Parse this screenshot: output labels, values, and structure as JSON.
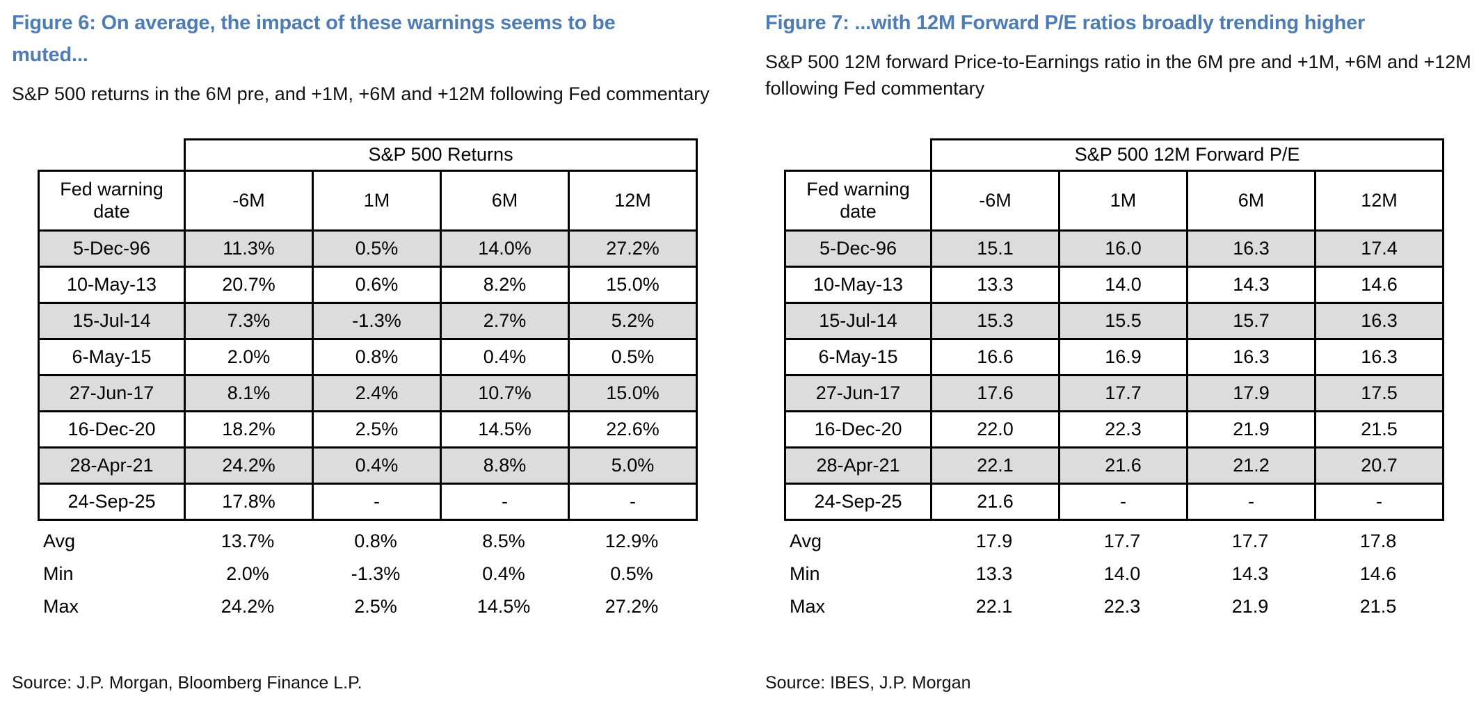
{
  "colors": {
    "title_blue": "#4e7cb4",
    "row_stripe": "#dcdcdc",
    "border": "#000000"
  },
  "figures": [
    {
      "id": "figure-6",
      "title": "Figure 6: On average, the impact of these warnings seems to be muted...",
      "subtitle": "S&P 500 returns in the 6M pre, and +1M, +6M and +12M following Fed commentary",
      "table": {
        "span_header": "S&P 500 Returns",
        "row_header": "Fed warning date",
        "col_headers": [
          "-6M",
          "1M",
          "6M",
          "12M"
        ],
        "rows": [
          {
            "date": "5-Dec-96",
            "values": [
              "11.3%",
              "0.5%",
              "14.0%",
              "27.2%"
            ]
          },
          {
            "date": "10-May-13",
            "values": [
              "20.7%",
              "0.6%",
              "8.2%",
              "15.0%"
            ]
          },
          {
            "date": "15-Jul-14",
            "values": [
              "7.3%",
              "-1.3%",
              "2.7%",
              "5.2%"
            ]
          },
          {
            "date": "6-May-15",
            "values": [
              "2.0%",
              "0.8%",
              "0.4%",
              "0.5%"
            ]
          },
          {
            "date": "27-Jun-17",
            "values": [
              "8.1%",
              "2.4%",
              "10.7%",
              "15.0%"
            ]
          },
          {
            "date": "16-Dec-20",
            "values": [
              "18.2%",
              "2.5%",
              "14.5%",
              "22.6%"
            ]
          },
          {
            "date": "28-Apr-21",
            "values": [
              "24.2%",
              "0.4%",
              "8.8%",
              "5.0%"
            ]
          },
          {
            "date": "24-Sep-25",
            "values": [
              "17.8%",
              "-",
              "-",
              "-"
            ]
          }
        ],
        "summary": [
          {
            "label": "Avg",
            "values": [
              "13.7%",
              "0.8%",
              "8.5%",
              "12.9%"
            ]
          },
          {
            "label": "Min",
            "values": [
              "2.0%",
              "-1.3%",
              "0.4%",
              "0.5%"
            ]
          },
          {
            "label": "Max",
            "values": [
              "24.2%",
              "2.5%",
              "14.5%",
              "27.2%"
            ]
          }
        ]
      },
      "source": "Source: J.P. Morgan, Bloomberg Finance L.P."
    },
    {
      "id": "figure-7",
      "title": "Figure 7: ...with 12M Forward P/E ratios broadly trending higher",
      "subtitle": "S&P 500 12M forward Price-to-Earnings ratio in the 6M pre and +1M, +6M and +12M following Fed commentary",
      "table": {
        "span_header": "S&P 500 12M Forward P/E",
        "row_header": "Fed warning date",
        "col_headers": [
          "-6M",
          "1M",
          "6M",
          "12M"
        ],
        "rows": [
          {
            "date": "5-Dec-96",
            "values": [
              "15.1",
              "16.0",
              "16.3",
              "17.4"
            ]
          },
          {
            "date": "10-May-13",
            "values": [
              "13.3",
              "14.0",
              "14.3",
              "14.6"
            ]
          },
          {
            "date": "15-Jul-14",
            "values": [
              "15.3",
              "15.5",
              "15.7",
              "16.3"
            ]
          },
          {
            "date": "6-May-15",
            "values": [
              "16.6",
              "16.9",
              "16.3",
              "16.3"
            ]
          },
          {
            "date": "27-Jun-17",
            "values": [
              "17.6",
              "17.7",
              "17.9",
              "17.5"
            ]
          },
          {
            "date": "16-Dec-20",
            "values": [
              "22.0",
              "22.3",
              "21.9",
              "21.5"
            ]
          },
          {
            "date": "28-Apr-21",
            "values": [
              "22.1",
              "21.6",
              "21.2",
              "20.7"
            ]
          },
          {
            "date": "24-Sep-25",
            "values": [
              "21.6",
              "-",
              "-",
              "-"
            ]
          }
        ],
        "summary": [
          {
            "label": "Avg",
            "values": [
              "17.9",
              "17.7",
              "17.7",
              "17.8"
            ]
          },
          {
            "label": "Min",
            "values": [
              "13.3",
              "14.0",
              "14.3",
              "14.6"
            ]
          },
          {
            "label": "Max",
            "values": [
              "22.1",
              "22.3",
              "21.9",
              "21.5"
            ]
          }
        ]
      },
      "source": "Source: IBES, J.P. Morgan"
    }
  ]
}
